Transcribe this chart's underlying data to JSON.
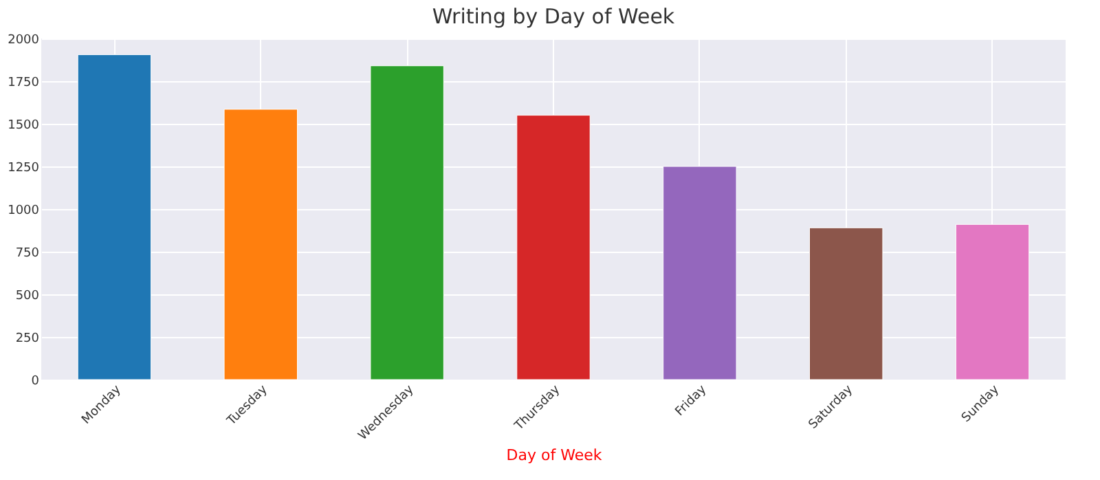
{
  "chart_data": {
    "type": "bar",
    "title": "Writing by Day of Week",
    "xlabel": "Day of Week",
    "categories": [
      "Monday",
      "Tuesday",
      "Wednesday",
      "Thursday",
      "Friday",
      "Saturday",
      "Sunday"
    ],
    "values": [
      1905,
      1585,
      1840,
      1550,
      1250,
      890,
      910
    ],
    "colors": [
      "#1f77b4",
      "#ff7f0e",
      "#2ca02c",
      "#d62728",
      "#9467bd",
      "#8c564b",
      "#e377c2"
    ],
    "ylim": [
      0,
      2000
    ],
    "yticks": [
      0,
      250,
      500,
      750,
      1000,
      1250,
      1500,
      1750,
      2000
    ],
    "grid": true
  }
}
